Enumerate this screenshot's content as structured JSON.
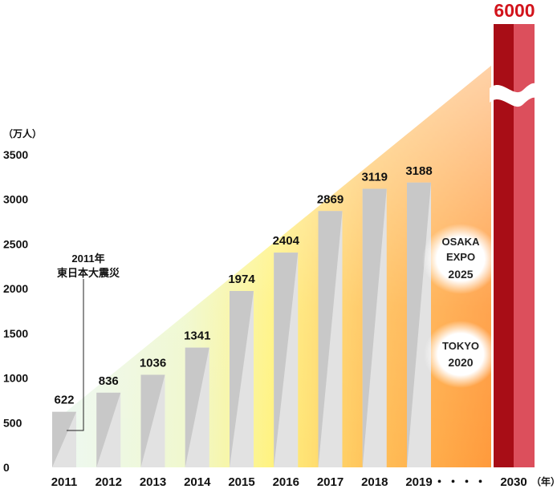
{
  "chart_data": {
    "type": "bar",
    "unit_label": "（万人）",
    "x_unit_label": "（年）",
    "categories": [
      "2011",
      "2012",
      "2013",
      "2014",
      "2015",
      "2016",
      "2017",
      "2018",
      "2019"
    ],
    "values": [
      622,
      836,
      1036,
      1341,
      1974,
      2404,
      2869,
      3119,
      3188
    ],
    "y_ticks": [
      "0",
      "500",
      "1000",
      "1500",
      "2000",
      "2500",
      "3000",
      "3500"
    ],
    "ylim": [
      0,
      3500
    ],
    "ellipsis": "・・・・",
    "target": {
      "year": "2030",
      "value": 6000,
      "label": "6000"
    },
    "annotation_2011": [
      "2011年",
      "東日本大震災"
    ],
    "events": [
      {
        "lines": [
          "OSAKA",
          "EXPO",
          "2025"
        ]
      },
      {
        "lines": [
          "TOKYO",
          "2020"
        ]
      }
    ],
    "colors": {
      "bar": "#c8c8c8",
      "bar_light": "#e2e2e2",
      "target_dark": "#a80d16",
      "target_light": "#dc4f5c",
      "target_text": "#d2131b",
      "glow_orange": "#ff9a3c",
      "glow_yellow": "#fff27a"
    },
    "grid": false,
    "legend": "none"
  }
}
